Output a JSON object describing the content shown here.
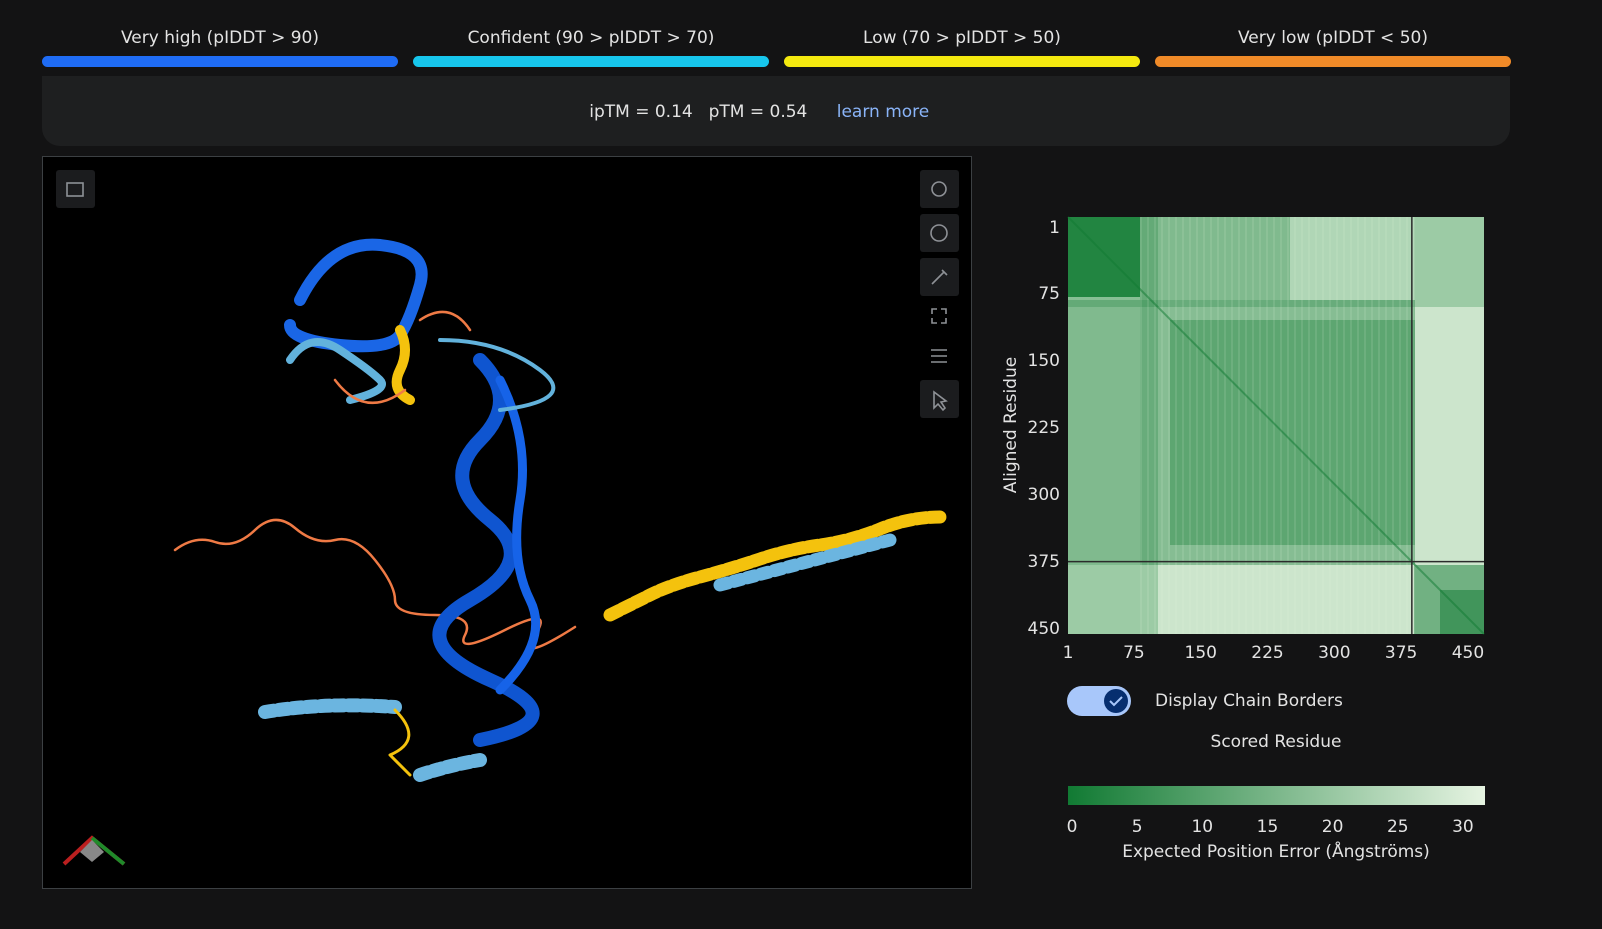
{
  "confidence_legend": [
    {
      "label": "Very high (pIDDT > 90)",
      "color": "#1f6cf5"
    },
    {
      "label": "Confident (90 > pIDDT > 70)",
      "color": "#17c6ec"
    },
    {
      "label": "Low (70 > pIDDT > 50)",
      "color": "#f4e90f"
    },
    {
      "label": "Very low (pIDDT < 50)",
      "color": "#f08a28"
    }
  ],
  "scores": {
    "iptm": "ipTM = 0.14",
    "ptm": "pTM = 0.54",
    "link": "learn more"
  },
  "pae_plot": {
    "y_label": "Aligned Residue",
    "x_label": "Scored Residue",
    "xlim": [
      1,
      468
    ],
    "ylim": [
      1,
      468
    ],
    "xticks": [
      1,
      75,
      150,
      225,
      300,
      375,
      450
    ],
    "yticks": [
      1,
      75,
      150,
      225,
      300,
      375,
      450
    ],
    "chain_border": 387,
    "toggle_label": "Display Chain Borders",
    "chain_borders_on": true,
    "colorbar": {
      "title": "Expected Position Error (Ångströms)",
      "lim": [
        0,
        32
      ],
      "ticks": [
        0,
        5,
        10,
        15,
        20,
        25,
        30
      ],
      "colors": [
        "#117a33",
        "#e6f4e2"
      ]
    }
  }
}
